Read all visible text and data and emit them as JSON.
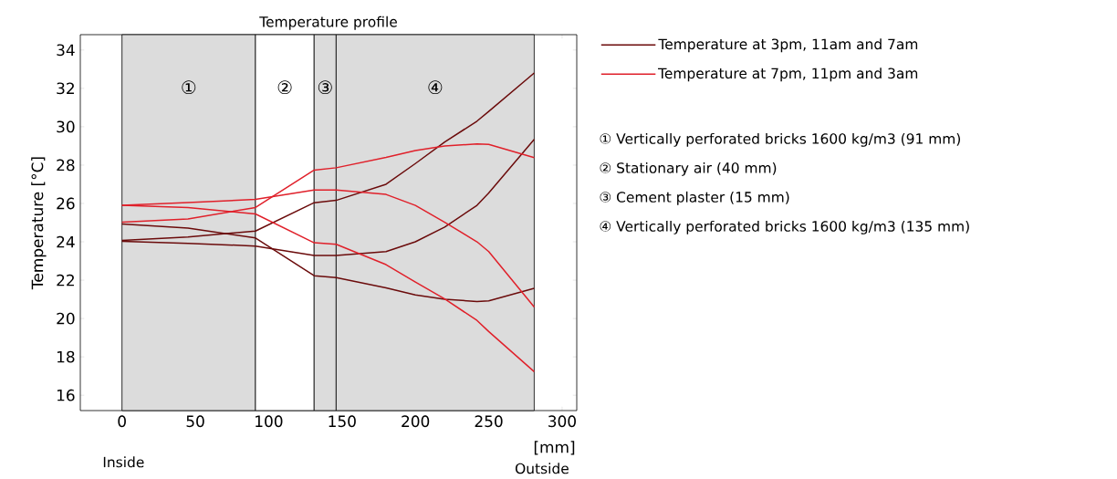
{
  "chart_data": {
    "type": "line",
    "title": "Temperature profile",
    "xlabel": "[mm]",
    "ylabel": "Temperature  [°C]",
    "x": [
      0,
      45,
      91,
      131,
      146,
      180,
      200,
      220,
      242,
      250,
      281
    ],
    "series": [
      {
        "name": "Temperature at 3pm, 11am and 7am",
        "color": "#6b0b0b",
        "values": [
          24.07,
          24.25,
          24.56,
          26.04,
          26.16,
          27.0,
          28.08,
          29.2,
          30.29,
          30.8,
          32.8
        ]
      },
      {
        "color": "#6b0b0b",
        "values": [
          24.03,
          23.92,
          23.78,
          23.29,
          23.29,
          23.49,
          24.0,
          24.77,
          25.9,
          26.55,
          29.34
        ]
      },
      {
        "color": "#6b0b0b",
        "values": [
          24.93,
          24.71,
          24.2,
          22.23,
          22.13,
          21.6,
          21.23,
          21.0,
          20.89,
          20.92,
          21.57
        ]
      },
      {
        "name": "Temperature at 7pm, 11pm and 3am",
        "color": "#e0202a",
        "values": [
          25.02,
          25.19,
          25.79,
          27.74,
          27.86,
          28.4,
          28.76,
          29.0,
          29.1,
          29.08,
          28.39
        ]
      },
      {
        "color": "#e0202a",
        "values": [
          25.9,
          26.05,
          26.21,
          26.7,
          26.7,
          26.47,
          25.9,
          25.02,
          24.0,
          23.49,
          20.6
        ]
      },
      {
        "color": "#e0202a",
        "values": [
          25.9,
          25.79,
          25.45,
          23.95,
          23.87,
          22.81,
          21.9,
          21.02,
          19.9,
          19.32,
          17.23
        ]
      }
    ],
    "xlim": [
      -28.4,
      310
    ],
    "ylim": [
      15.2,
      34.8
    ],
    "xticks": [
      0,
      50,
      100,
      150,
      200,
      250,
      300
    ],
    "yticks": [
      16,
      18,
      20,
      22,
      24,
      26,
      28,
      30,
      32,
      34
    ],
    "bands": [
      {
        "axis": "x",
        "from": 0,
        "to": 91,
        "label": "①",
        "color": "#dcdcdc"
      },
      {
        "axis": "x",
        "from": 91,
        "to": 131,
        "label": "②",
        "color": "#ffffff"
      },
      {
        "axis": "x",
        "from": 131,
        "to": 146,
        "label": "③",
        "color": "#dcdcdc"
      },
      {
        "axis": "x",
        "from": 146,
        "to": 281,
        "label": "④",
        "color": "#dcdcdc"
      }
    ],
    "annotations": [
      "Inside",
      "Outside",
      "① Vertically perforated bricks 1600 kg/m3 (91 mm)",
      "② Stationary air (40 mm)",
      "③ Cement plaster (15 mm)",
      "④ Vertically perforated bricks 1600 kg/m3 (135 mm)"
    ],
    "legend": "top right",
    "grid": false
  }
}
